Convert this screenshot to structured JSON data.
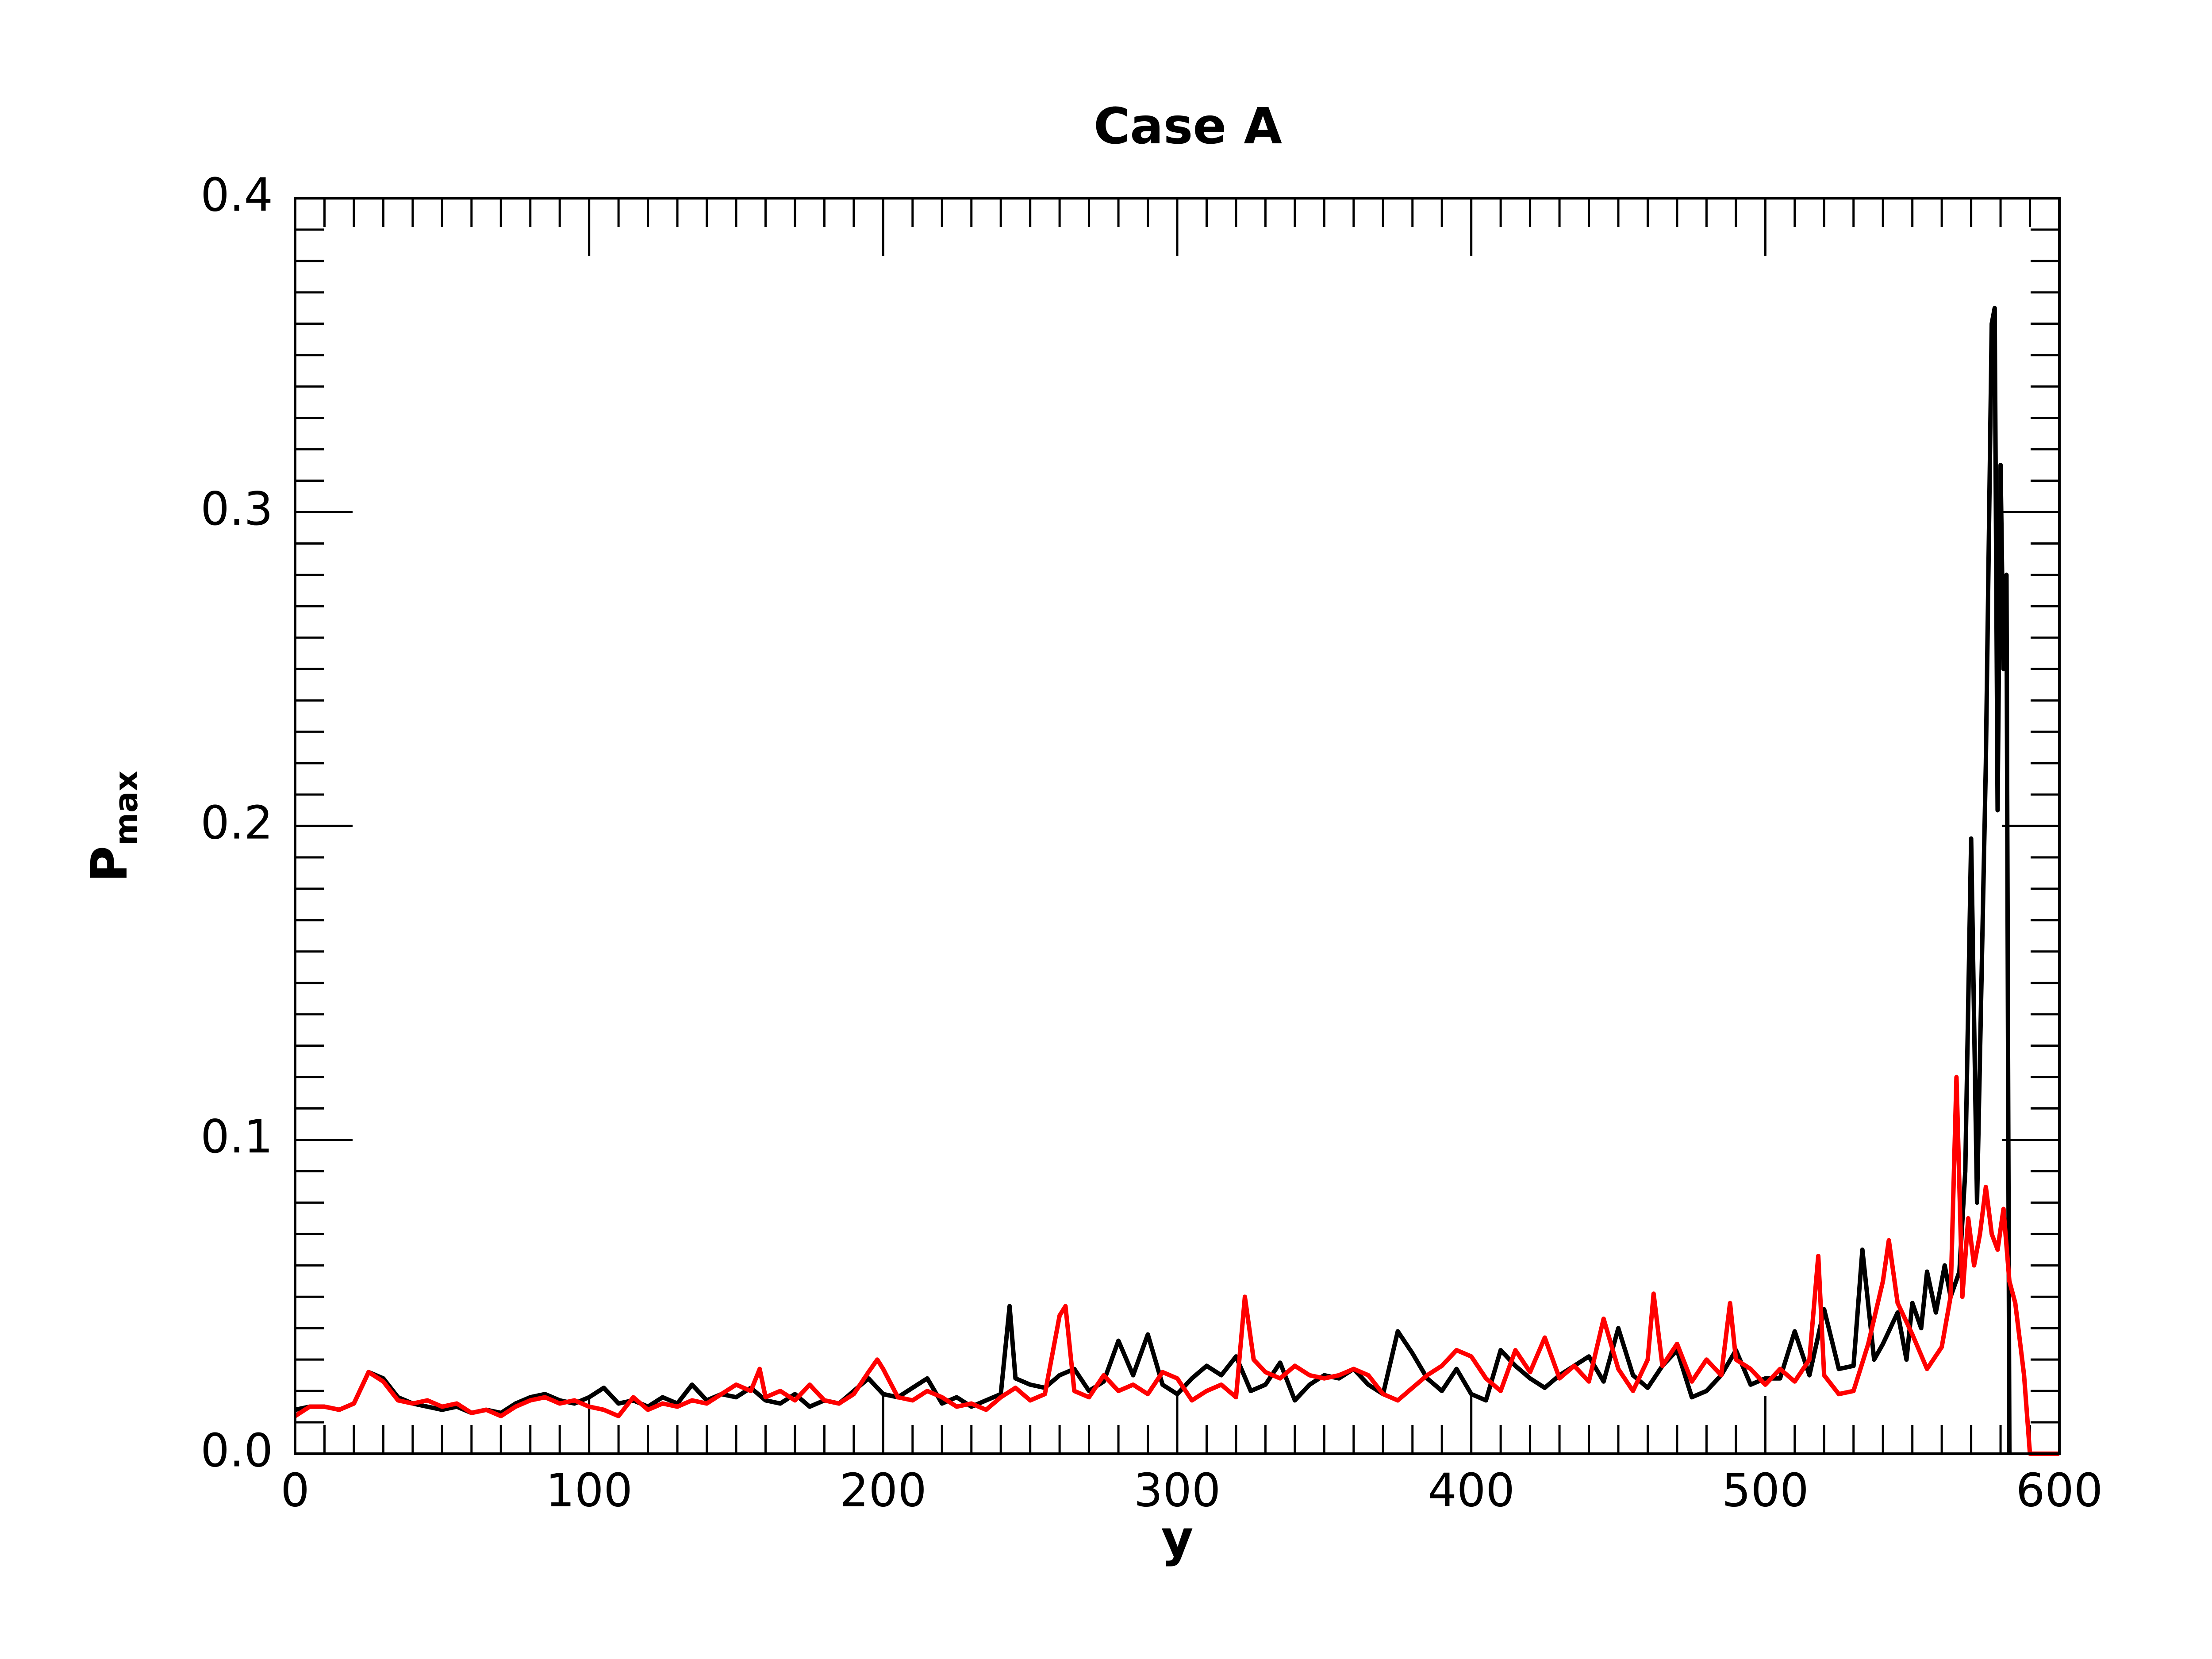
{
  "chart_data": {
    "type": "line",
    "title": "Case A",
    "xlabel": "y",
    "ylabel": {
      "text": "P",
      "subscript": "max"
    },
    "xlim": [
      0,
      600
    ],
    "xticks": [
      0,
      100,
      200,
      300,
      400,
      500,
      600
    ],
    "ylim": [
      0,
      0.4
    ],
    "yticks": [
      {
        "value": 0,
        "label": "0.0"
      },
      0.1,
      0.2,
      0.3,
      0.4
    ],
    "series": [
      {
        "color": "#000000",
        "x": [
          0,
          5,
          10,
          15,
          20,
          25,
          30,
          35,
          40,
          45,
          50,
          55,
          60,
          65,
          70,
          75,
          80,
          85,
          90,
          95,
          100,
          105,
          110,
          115,
          120,
          125,
          130,
          135,
          140,
          145,
          150,
          155,
          160,
          165,
          170,
          175,
          180,
          185,
          190,
          195,
          200,
          205,
          210,
          215,
          220,
          225,
          230,
          235,
          240,
          243,
          245,
          250,
          255,
          260,
          265,
          270,
          275,
          280,
          285,
          290,
          295,
          300,
          305,
          310,
          315,
          320,
          325,
          330,
          335,
          340,
          345,
          350,
          355,
          360,
          365,
          370,
          375,
          380,
          385,
          390,
          395,
          400,
          405,
          410,
          415,
          420,
          425,
          430,
          435,
          440,
          445,
          450,
          455,
          460,
          465,
          470,
          475,
          480,
          485,
          490,
          495,
          500,
          505,
          510,
          515,
          520,
          525,
          530,
          533,
          537,
          540,
          545,
          548,
          550,
          553,
          555,
          558,
          561,
          563,
          566,
          568,
          570,
          572,
          575,
          577,
          578,
          579,
          580,
          581,
          582,
          583
        ],
        "values": [
          0.014,
          0.015,
          0.015,
          0.014,
          0.016,
          0.026,
          0.024,
          0.018,
          0.016,
          0.015,
          0.014,
          0.015,
          0.013,
          0.014,
          0.013,
          0.016,
          0.018,
          0.019,
          0.017,
          0.016,
          0.018,
          0.021,
          0.016,
          0.017,
          0.015,
          0.018,
          0.016,
          0.022,
          0.017,
          0.019,
          0.018,
          0.021,
          0.017,
          0.016,
          0.019,
          0.015,
          0.017,
          0.016,
          0.02,
          0.024,
          0.019,
          0.018,
          0.021,
          0.024,
          0.016,
          0.018,
          0.015,
          0.017,
          0.019,
          0.047,
          0.024,
          0.022,
          0.021,
          0.025,
          0.027,
          0.02,
          0.023,
          0.036,
          0.025,
          0.038,
          0.022,
          0.019,
          0.024,
          0.028,
          0.025,
          0.031,
          0.02,
          0.022,
          0.029,
          0.017,
          0.022,
          0.025,
          0.024,
          0.027,
          0.022,
          0.019,
          0.039,
          0.032,
          0.024,
          0.02,
          0.027,
          0.019,
          0.017,
          0.033,
          0.028,
          0.024,
          0.021,
          0.025,
          0.028,
          0.031,
          0.023,
          0.04,
          0.025,
          0.021,
          0.028,
          0.033,
          0.018,
          0.02,
          0.025,
          0.033,
          0.022,
          0.024,
          0.024,
          0.039,
          0.025,
          0.046,
          0.027,
          0.028,
          0.065,
          0.03,
          0.035,
          0.045,
          0.03,
          0.048,
          0.04,
          0.058,
          0.045,
          0.06,
          0.05,
          0.058,
          0.09,
          0.196,
          0.08,
          0.22,
          0.36,
          0.365,
          0.205,
          0.315,
          0.25,
          0.28,
          0
        ]
      },
      {
        "color": "#ff0000",
        "x": [
          0,
          5,
          10,
          15,
          20,
          25,
          30,
          35,
          40,
          45,
          50,
          55,
          60,
          65,
          70,
          75,
          80,
          85,
          90,
          95,
          100,
          105,
          110,
          115,
          120,
          125,
          130,
          135,
          140,
          145,
          150,
          155,
          158,
          160,
          165,
          170,
          175,
          180,
          185,
          190,
          195,
          198,
          200,
          205,
          210,
          215,
          220,
          225,
          230,
          235,
          240,
          245,
          250,
          255,
          260,
          262,
          265,
          270,
          275,
          280,
          285,
          290,
          295,
          300,
          305,
          310,
          315,
          320,
          323,
          326,
          330,
          335,
          340,
          345,
          350,
          355,
          360,
          365,
          370,
          375,
          380,
          385,
          390,
          395,
          400,
          405,
          410,
          415,
          420,
          425,
          430,
          435,
          440,
          445,
          450,
          455,
          460,
          462,
          465,
          470,
          475,
          480,
          485,
          488,
          490,
          495,
          500,
          505,
          510,
          515,
          518,
          520,
          525,
          530,
          535,
          540,
          542,
          545,
          550,
          555,
          560,
          563,
          565,
          567,
          569,
          571,
          573,
          575,
          577,
          579,
          581,
          583,
          585,
          588,
          590,
          600
        ],
        "values": [
          0.012,
          0.015,
          0.015,
          0.014,
          0.016,
          0.026,
          0.023,
          0.017,
          0.016,
          0.017,
          0.015,
          0.016,
          0.013,
          0.014,
          0.012,
          0.015,
          0.017,
          0.018,
          0.016,
          0.017,
          0.015,
          0.014,
          0.012,
          0.018,
          0.014,
          0.016,
          0.015,
          0.017,
          0.016,
          0.019,
          0.022,
          0.02,
          0.027,
          0.018,
          0.02,
          0.017,
          0.022,
          0.017,
          0.016,
          0.019,
          0.026,
          0.03,
          0.027,
          0.018,
          0.017,
          0.02,
          0.018,
          0.015,
          0.016,
          0.014,
          0.018,
          0.021,
          0.017,
          0.019,
          0.044,
          0.047,
          0.02,
          0.018,
          0.025,
          0.02,
          0.022,
          0.019,
          0.026,
          0.024,
          0.017,
          0.02,
          0.022,
          0.018,
          0.05,
          0.03,
          0.026,
          0.024,
          0.028,
          0.025,
          0.024,
          0.025,
          0.027,
          0.025,
          0.019,
          0.017,
          0.021,
          0.025,
          0.028,
          0.033,
          0.031,
          0.024,
          0.02,
          0.033,
          0.026,
          0.037,
          0.024,
          0.028,
          0.023,
          0.043,
          0.027,
          0.02,
          0.03,
          0.051,
          0.028,
          0.035,
          0.023,
          0.03,
          0.025,
          0.048,
          0.03,
          0.027,
          0.022,
          0.027,
          0.023,
          0.03,
          0.063,
          0.025,
          0.019,
          0.02,
          0.035,
          0.055,
          0.068,
          0.048,
          0.038,
          0.027,
          0.034,
          0.05,
          0.12,
          0.05,
          0.075,
          0.06,
          0.07,
          0.085,
          0.07,
          0.065,
          0.078,
          0.055,
          0.048,
          0.025,
          0,
          0
        ]
      }
    ]
  }
}
